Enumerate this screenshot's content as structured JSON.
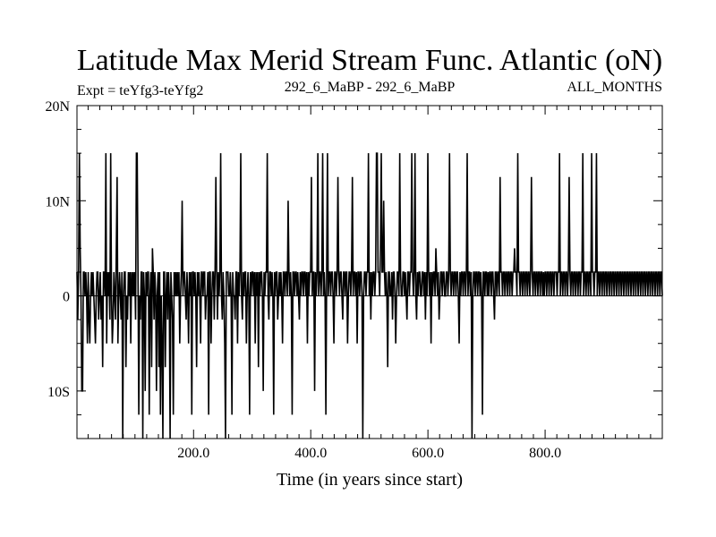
{
  "chart_data": {
    "type": "line",
    "title": "Latitude Max Merid Stream Func. Atlantic (oN)",
    "subtitle_left": "Expt = teYfg3-teYfg2",
    "subtitle_center": "292_6_MaBP - 292_6_MaBP",
    "subtitle_right": "ALL_MONTHS",
    "xlabel": "Time (in years since start)",
    "ylabel": "",
    "xlim": [
      1,
      1000
    ],
    "ylim": [
      -15,
      20
    ],
    "x_ticks": [
      {
        "value": 200,
        "label": "200.0"
      },
      {
        "value": 400,
        "label": "400.0"
      },
      {
        "value": 600,
        "label": "600.0"
      },
      {
        "value": 800,
        "label": "800.0"
      }
    ],
    "y_ticks": [
      {
        "value": 20,
        "label": "20N"
      },
      {
        "value": 10,
        "label": "10N"
      },
      {
        "value": 0,
        "label": "0"
      },
      {
        "value": -10,
        "label": "10S"
      }
    ],
    "grid": false,
    "series": [
      {
        "values": [
          2.5,
          -2.5,
          2.5,
          15,
          5,
          0,
          -10,
          -10,
          2.5,
          2.5,
          0,
          2.5,
          0,
          -5,
          2.5,
          -2.5,
          -5,
          0,
          2.5,
          0,
          2.5,
          0,
          -2.5,
          -5,
          0,
          2.5,
          2.5,
          -2.5,
          0,
          2.5,
          -2.5,
          0,
          -7.5,
          2.5,
          2.5,
          0,
          15,
          -5,
          2.5,
          0,
          2.5,
          -2.5,
          15,
          0,
          -5,
          -2.5,
          2.5,
          0,
          -2.5,
          5,
          12.5,
          -5,
          0,
          2.5,
          0,
          -2.5,
          2.5,
          -15,
          0,
          2.5,
          2.5,
          -7.5,
          0,
          -2.5,
          2.5,
          0,
          2.5,
          -5,
          2.5,
          0,
          2.5,
          0,
          2.5,
          -2.5,
          15,
          15,
          2.5,
          -12.5,
          0,
          -2.5,
          2.5,
          2.5,
          -15,
          2.5,
          0,
          -10,
          2.5,
          0,
          2.5,
          2.5,
          -12.5,
          0,
          2.5,
          -7.5,
          5,
          2.5,
          -2.5,
          2.5,
          0,
          -10,
          0,
          2.5,
          -7.5,
          2.5,
          -12.5,
          0,
          -5,
          -15,
          2.5,
          2.5,
          -7.5,
          0,
          2.5,
          -2.5,
          2.5,
          0,
          -15,
          2.5,
          0,
          -2.5,
          -12.5,
          2.5,
          0,
          2.5,
          0,
          2.5,
          0,
          2.5,
          -5,
          0,
          2.5,
          10,
          0,
          2.5,
          2.5,
          0,
          -2.5,
          2.5,
          0,
          -5,
          2.5,
          0,
          2.5,
          -12.5,
          2.5,
          2.5,
          0,
          2.5,
          0,
          -7.5,
          2.5,
          0,
          2.5,
          0,
          -5,
          2.5,
          2.5,
          0,
          2.5,
          2.5,
          -2.5,
          0,
          0,
          2.5,
          -12.5,
          2.5,
          2.5,
          -5,
          0,
          2.5,
          2.5,
          -2.5,
          2.5,
          12.5,
          2.5,
          -2.5,
          2.5,
          0,
          2.5,
          15,
          0,
          -2.5,
          2.5,
          0,
          -5,
          -15,
          2.5,
          2.5,
          2.5,
          0,
          0,
          2.5,
          0,
          -12.5,
          2.5,
          0,
          0,
          -2.5,
          2.5,
          2.5,
          -5,
          2.5,
          0,
          2.5,
          15,
          0,
          -2.5,
          2.5,
          0,
          2.5,
          2.5,
          -5,
          0,
          2.5,
          0,
          -12.5,
          2.5,
          0,
          2.5,
          2.5,
          0,
          2.5,
          -5,
          2.5,
          0,
          2.5,
          -7.5,
          2.5,
          0,
          2.5,
          2.5,
          0,
          -10,
          2.5,
          0,
          2.5,
          2.5,
          15,
          0,
          -2.5,
          2.5,
          2.5,
          0,
          2.5,
          0,
          -12.5,
          2.5,
          0,
          2.5,
          2.5,
          -2.5,
          0,
          2.5,
          0,
          2.5,
          0,
          -5,
          2.5,
          2.5,
          0,
          2.5,
          2.5,
          0,
          10,
          2.5,
          0,
          2.5,
          0,
          -12.5,
          2.5,
          2.5,
          0,
          2.5,
          2.5,
          0,
          2.5,
          0,
          -2.5,
          2.5,
          0,
          2.5,
          2.5,
          0,
          2.5,
          2.5,
          0,
          2.5,
          -5,
          2.5,
          0,
          2.5,
          2.5,
          12.5,
          0,
          2.5,
          2.5,
          -10,
          2.5,
          0,
          2.5,
          15,
          0,
          2.5,
          2.5,
          0,
          2.5,
          15,
          0,
          2.5,
          0,
          -12.5,
          2.5,
          15,
          0,
          2.5,
          2.5,
          0,
          2.5,
          2.5,
          0,
          -5,
          2.5,
          2.5,
          0,
          2.5,
          12.5,
          2.5,
          0,
          2.5,
          2.5,
          0,
          -2.5,
          2.5,
          2.5,
          0,
          2.5,
          2.5,
          -5,
          0,
          2.5,
          2.5,
          0,
          2.5,
          12.5,
          0,
          2.5,
          2.5,
          0,
          2.5,
          -5,
          2.5,
          2.5,
          0,
          2.5,
          2.5,
          0,
          -15,
          0,
          2.5,
          2.5,
          0,
          2.5,
          2.5,
          15,
          0,
          2.5,
          -2.5,
          2.5,
          0,
          2.5,
          2.5,
          0,
          2.5,
          15,
          15,
          2.5,
          2.5,
          0,
          5,
          15,
          2.5,
          2.5,
          10,
          2.5,
          0,
          2.5,
          0,
          -7.5,
          2.5,
          2.5,
          0,
          0,
          2.5,
          -2.5,
          2.5,
          2.5,
          0,
          -5,
          0,
          2.5,
          2.5,
          0,
          15,
          2.5,
          0,
          0,
          2.5,
          2.5,
          0,
          2.5,
          0,
          -2.5,
          2.5,
          2.5,
          0,
          2.5,
          2.5,
          15,
          2.5,
          0,
          2.5,
          15,
          0,
          -2.5,
          2.5,
          0,
          2.5,
          2.5,
          0,
          0,
          2.5,
          2.5,
          0,
          2.5,
          -2.5,
          2.5,
          0,
          15,
          2.5,
          0,
          2.5,
          -5,
          2.5,
          0,
          2.5,
          2.5,
          0,
          5,
          2.5,
          0,
          2.5,
          -2.5,
          0,
          2.5,
          2.5,
          0,
          2.5,
          2.5,
          0,
          0,
          2.5,
          2.5,
          0,
          2.5,
          15,
          2.5,
          0,
          2.5,
          2.5,
          0,
          2.5,
          2.5,
          0,
          2.5,
          2.5,
          0,
          -5,
          2.5,
          0,
          2.5,
          2.5,
          0,
          2.5,
          2.5,
          0,
          2.5,
          15,
          0,
          2.5,
          2.5,
          0,
          2.5,
          -15,
          0,
          2.5,
          2.5,
          0,
          2.5,
          2.5,
          0,
          2.5,
          2.5,
          0,
          2.5,
          0,
          -12.5,
          2.5,
          2.5,
          0,
          2.5,
          2.5,
          0,
          2.5,
          0,
          2.5,
          2.5,
          0,
          2.5,
          2.5,
          0,
          -2.5,
          2.5,
          2.5,
          0,
          2.5,
          2.5,
          0,
          12.5,
          2.5,
          2.5,
          0,
          2.5,
          2.5,
          0,
          2.5,
          2.5,
          0,
          2.5,
          2.5,
          0,
          2.5,
          2.5,
          0,
          2.5,
          2.5,
          5,
          2.5,
          2.5,
          0,
          15,
          2.5,
          2.5,
          0,
          2.5,
          2.5,
          0,
          2.5,
          2.5,
          0,
          2.5,
          2.5,
          0,
          2.5,
          2.5,
          0,
          2.5,
          12.5,
          2.5,
          0,
          2.5,
          2.5,
          0,
          2.5,
          2.5,
          0,
          2.5,
          2.5,
          0,
          2.5,
          2.5,
          0,
          2.5,
          0,
          2.5,
          2.5,
          0,
          2.5,
          2.5,
          0,
          2.5,
          2.5,
          0,
          2.5,
          2.5,
          0,
          2.5,
          2.5,
          2.5,
          0,
          2.5,
          2.5,
          15,
          0,
          2.5,
          2.5,
          0,
          2.5,
          2.5,
          0,
          2.5,
          2.5,
          0,
          2.5,
          12.5,
          2.5,
          0,
          2.5,
          2.5,
          0,
          2.5,
          2.5,
          0,
          2.5,
          2.5,
          0,
          2.5,
          2.5,
          0,
          2.5,
          2.5,
          15,
          0,
          2.5,
          2.5,
          0,
          2.5,
          2.5,
          0,
          2.5,
          2.5,
          0,
          15,
          2.5,
          2.5,
          0,
          2.5,
          2.5,
          15,
          0,
          2.5,
          2.5,
          0,
          2.5,
          2.5,
          0,
          2.5,
          2.5,
          0,
          2.5,
          2.5,
          0,
          2.5,
          2.5,
          0,
          2.5,
          2.5,
          0,
          2.5,
          2.5,
          0,
          2.5,
          2.5,
          0,
          2.5,
          2.5,
          0,
          2.5,
          2.5,
          0,
          2.5,
          2.5,
          0,
          2.5,
          2.5,
          0,
          2.5,
          2.5,
          0,
          2.5,
          2.5,
          0,
          2.5,
          2.5,
          0,
          2.5,
          2.5,
          0,
          2.5,
          2.5,
          0,
          2.5,
          2.5,
          0,
          2.5,
          2.5,
          0,
          2.5,
          2.5,
          0,
          2.5,
          2.5,
          0,
          2.5,
          2.5,
          0,
          2.5,
          2.5,
          0,
          2.5,
          2.5,
          0,
          2.5,
          2.5,
          0,
          2.5,
          2.5,
          0,
          2.5,
          2.5,
          0
        ]
      }
    ],
    "line_color": "#000000",
    "background": "#ffffff"
  }
}
